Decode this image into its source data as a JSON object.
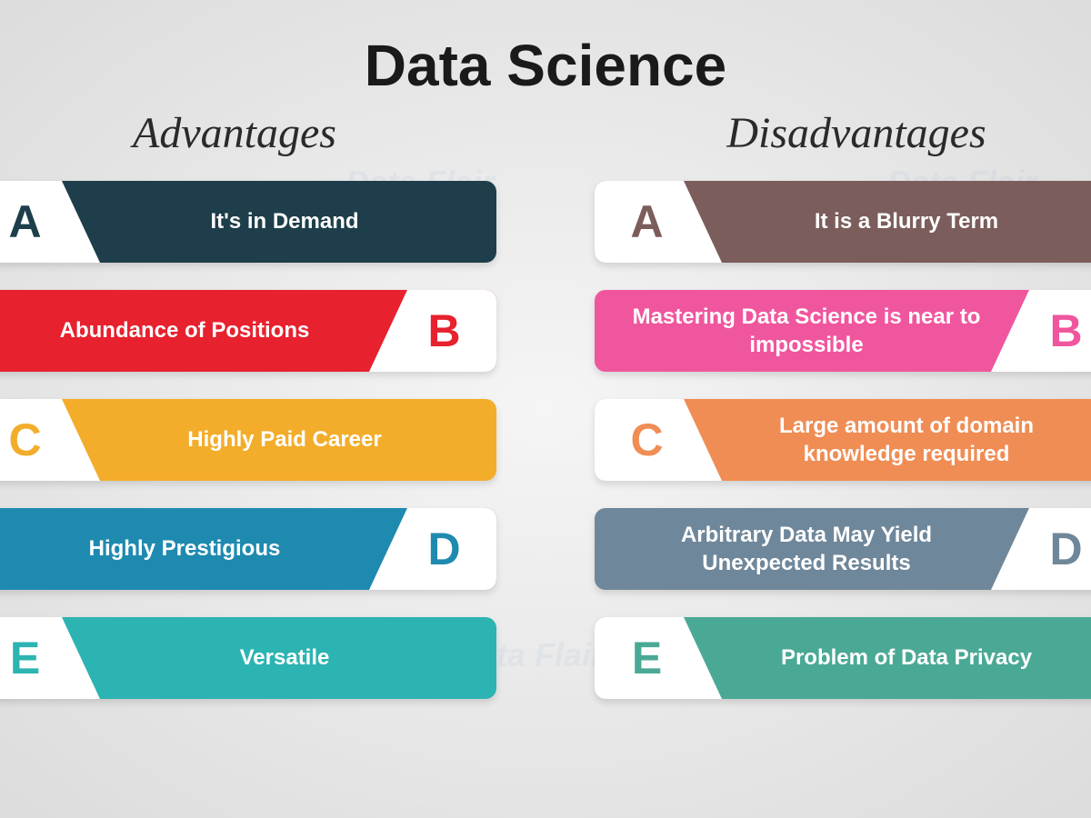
{
  "title": "Data Science",
  "title_fontsize": 64,
  "title_color": "#1a1a1a",
  "background_gradient": [
    "#f5f5f5",
    "#dcdcdc"
  ],
  "watermark_text": "Data Flair",
  "columns": {
    "advantages": {
      "heading": "Advantages",
      "heading_fontsize": 48,
      "items": [
        {
          "letter": "A",
          "text": "It's in Demand",
          "bg_color": "#1d3e4a",
          "letter_color": "#1d3e4a",
          "letter_side": "left"
        },
        {
          "letter": "B",
          "text": "Abundance of Positions",
          "bg_color": "#e7212e",
          "letter_color": "#e7212e",
          "letter_side": "right"
        },
        {
          "letter": "C",
          "text": "Highly Paid Career",
          "bg_color": "#f3ad2a",
          "letter_color": "#f3ad2a",
          "letter_side": "left"
        },
        {
          "letter": "D",
          "text": "Highly Prestigious",
          "bg_color": "#1f8ab0",
          "letter_color": "#1f8ab0",
          "letter_side": "right"
        },
        {
          "letter": "E",
          "text": "Versatile",
          "bg_color": "#2cb4b2",
          "letter_color": "#2cb4b2",
          "letter_side": "left"
        }
      ]
    },
    "disadvantages": {
      "heading": "Disadvantages",
      "heading_fontsize": 48,
      "items": [
        {
          "letter": "A",
          "text": "It is a Blurry Term",
          "bg_color": "#7b5d5b",
          "letter_color": "#7b5d5b",
          "letter_side": "left"
        },
        {
          "letter": "B",
          "text": "Mastering Data Science is near to impossible",
          "bg_color": "#f0569e",
          "letter_color": "#f0569e",
          "letter_side": "right"
        },
        {
          "letter": "C",
          "text": "Large amount of domain knowledge required",
          "bg_color": "#f08d54",
          "letter_color": "#f08d54",
          "letter_side": "left"
        },
        {
          "letter": "D",
          "text": "Arbitrary Data May Yield Unexpected Results",
          "bg_color": "#6f879a",
          "letter_color": "#6f879a",
          "letter_side": "right"
        },
        {
          "letter": "E",
          "text": "Problem of Data Privacy",
          "bg_color": "#4aa995",
          "letter_color": "#4aa995",
          "letter_side": "left"
        }
      ]
    }
  },
  "bar_style": {
    "height": 90,
    "border_radius": 12,
    "gap": 30,
    "text_color": "#ffffff",
    "text_fontsize": 24,
    "letter_fontsize": 50,
    "letter_tab_bg": "#ffffff"
  }
}
